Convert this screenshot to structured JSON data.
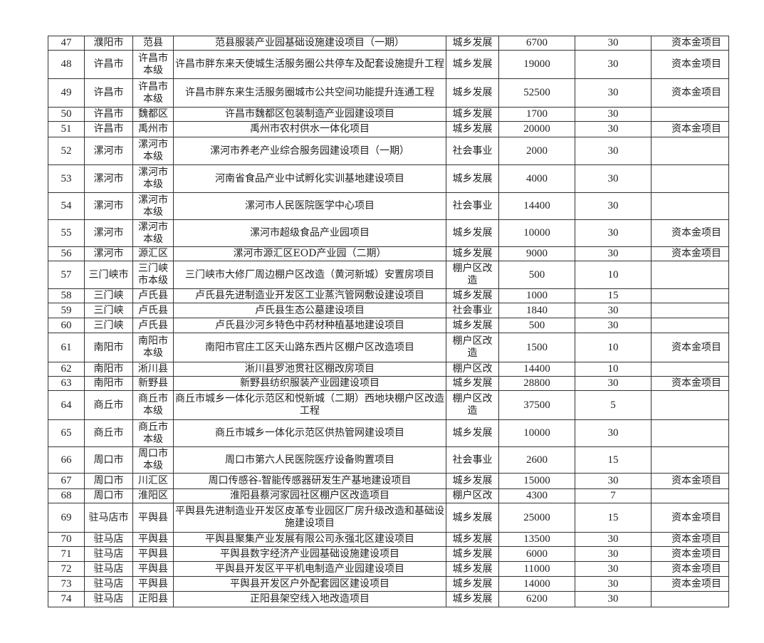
{
  "rows": [
    [
      "47",
      "濮阳市",
      "范县",
      "范县服装产业园基础设施建设项目（一期）",
      "城乡发展",
      "6700",
      "30",
      "资本金项目"
    ],
    [
      "48",
      "许昌市",
      "许昌市本级",
      "许昌市胖东来天使城生活服务圈公共停车及配套设施提升工程",
      "城乡发展",
      "19000",
      "30",
      "资本金项目"
    ],
    [
      "49",
      "许昌市",
      "许昌市本级",
      "许昌市胖东来生活服务圈城市公共空间功能提升连通工程",
      "城乡发展",
      "52500",
      "30",
      "资本金项目"
    ],
    [
      "50",
      "许昌市",
      "魏都区",
      "许昌市魏都区包装制造产业园建设项目",
      "城乡发展",
      "1700",
      "30",
      ""
    ],
    [
      "51",
      "许昌市",
      "禹州市",
      "禹州市农村供水一体化项目",
      "城乡发展",
      "20000",
      "30",
      "资本金项目"
    ],
    [
      "52",
      "漯河市",
      "漯河市本级",
      "漯河市养老产业综合服务园建设项目（一期）",
      "社会事业",
      "2000",
      "30",
      ""
    ],
    [
      "53",
      "漯河市",
      "漯河市本级",
      "河南省食品产业中试孵化实训基地建设项目",
      "城乡发展",
      "4000",
      "30",
      ""
    ],
    [
      "54",
      "漯河市",
      "漯河市本级",
      "漯河市人民医院医学中心项目",
      "社会事业",
      "14400",
      "30",
      ""
    ],
    [
      "55",
      "漯河市",
      "漯河市本级",
      "漯河市超级食品产业园项目",
      "城乡发展",
      "10000",
      "30",
      "资本金项目"
    ],
    [
      "56",
      "漯河市",
      "源汇区",
      "漯河市源汇区EOD产业园（二期）",
      "城乡发展",
      "9000",
      "30",
      "资本金项目"
    ],
    [
      "57",
      "三门峡市",
      "三门峡市本级",
      "三门峡市大修厂周边棚户区改造（黄河新城）安置房项目",
      "棚户区改造",
      "500",
      "10",
      ""
    ],
    [
      "58",
      "三门峡",
      "卢氏县",
      "卢氏县先进制造业开发区工业蒸汽管网敷设建设项目",
      "城乡发展",
      "1000",
      "15",
      ""
    ],
    [
      "59",
      "三门峡",
      "卢氏县",
      "卢氏县生态公墓建设项目",
      "社会事业",
      "1840",
      "30",
      ""
    ],
    [
      "60",
      "三门峡",
      "卢氏县",
      "卢氏县沙河乡特色中药材种植基地建设项目",
      "城乡发展",
      "500",
      "30",
      ""
    ],
    [
      "61",
      "南阳市",
      "南阳市本级",
      "南阳市官庄工区天山路东西片区棚户区改造项目",
      "棚户区改造",
      "1500",
      "10",
      "资本金项目"
    ],
    [
      "62",
      "南阳市",
      "淅川县",
      "淅川县罗池贯社区棚改房项目",
      "棚户区改",
      "14400",
      "10",
      ""
    ],
    [
      "63",
      "南阳市",
      "新野县",
      "新野县纺织服装产业园建设项目",
      "城乡发展",
      "28800",
      "30",
      "资本金项目"
    ],
    [
      "64",
      "商丘市",
      "商丘市本级",
      "商丘市城乡一体化示范区和悦新城（二期）西地块棚户区改造工程",
      "棚户区改造",
      "37500",
      "5",
      ""
    ],
    [
      "65",
      "商丘市",
      "商丘市本级",
      "商丘市城乡一体化示范区供热管网建设项目",
      "城乡发展",
      "10000",
      "30",
      ""
    ],
    [
      "66",
      "周口市",
      "周口市本级",
      "周口市第六人民医院医疗设备购置项目",
      "社会事业",
      "2600",
      "15",
      ""
    ],
    [
      "67",
      "周口市",
      "川汇区",
      "周口传感谷-智能传感器研发生产基地建设项目",
      "城乡发展",
      "15000",
      "30",
      "资本金项目"
    ],
    [
      "68",
      "周口市",
      "淮阳区",
      "淮阳县蔡河家园社区棚户区改造项目",
      "棚户区改",
      "4300",
      "7",
      ""
    ],
    [
      "69",
      "驻马店市",
      "平舆县",
      "平舆县先进制造业开发区皮革专业园区厂房升级改造和基础设施建设项目",
      "城乡发展",
      "25000",
      "15",
      "资本金项目"
    ],
    [
      "70",
      "驻马店",
      "平舆县",
      "平舆县聚集产业发展有限公司永强北区建设项目",
      "城乡发展",
      "13500",
      "30",
      "资本金项目"
    ],
    [
      "71",
      "驻马店",
      "平舆县",
      "平舆县数字经济产业园基础设施建设项目",
      "城乡发展",
      "6000",
      "30",
      "资本金项目"
    ],
    [
      "72",
      "驻马店",
      "平舆县",
      "平舆县开发区平平机电制造产业园建设项目",
      "城乡发展",
      "11000",
      "30",
      "资本金项目"
    ],
    [
      "73",
      "驻马店",
      "平舆县",
      "平舆县开发区户外配套园区建设项目",
      "城乡发展",
      "14000",
      "30",
      "资本金项目"
    ],
    [
      "74",
      "驻马店",
      "正阳县",
      "正阳县架空线入地改造项目",
      "城乡发展",
      "6200",
      "30",
      ""
    ]
  ]
}
